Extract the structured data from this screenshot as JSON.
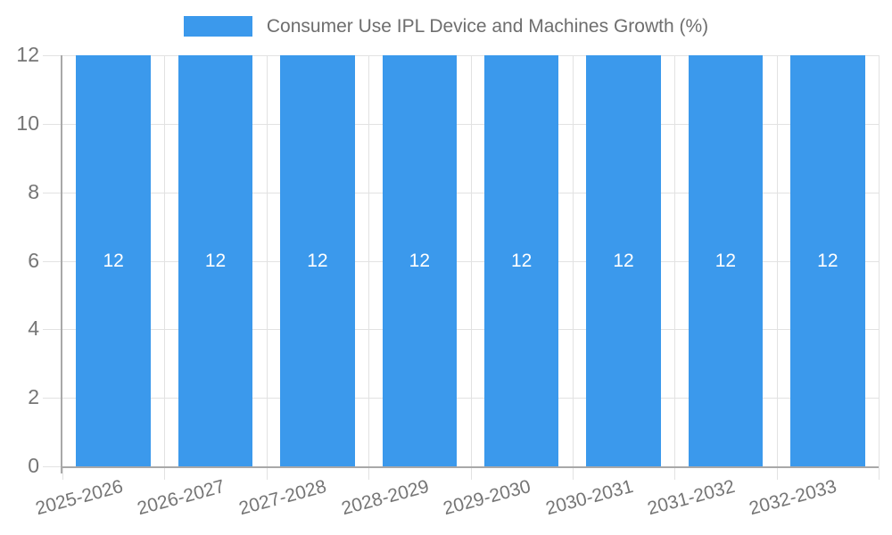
{
  "chart_data": {
    "type": "bar",
    "title": "Consumer Use IPL Device and Machines Growth (%)",
    "categories": [
      "2025-2026",
      "2026-2027",
      "2027-2028",
      "2028-2029",
      "2029-2030",
      "2030-2031",
      "2031-2032",
      "2032-2033"
    ],
    "series": [
      {
        "name": "Consumer Use IPL Device and Machines Growth (%)",
        "values": [
          12,
          12,
          12,
          12,
          12,
          12,
          12,
          12
        ]
      }
    ],
    "value_labels": [
      "12",
      "12",
      "12",
      "12",
      "12",
      "12",
      "12",
      "12"
    ],
    "xlabel": "",
    "ylabel": "",
    "ylim": [
      0,
      12
    ],
    "yticks": [
      0,
      2,
      4,
      6,
      8,
      10,
      12
    ],
    "grid": true,
    "legend_position": "top-center",
    "colors": {
      "bar": "#3B99EC",
      "grid": "#E2E2E2",
      "axis": "#A8A8A8",
      "tick_text": "#757575",
      "title_text": "#6E6E6E",
      "value_label": "#FFFFFF"
    }
  }
}
